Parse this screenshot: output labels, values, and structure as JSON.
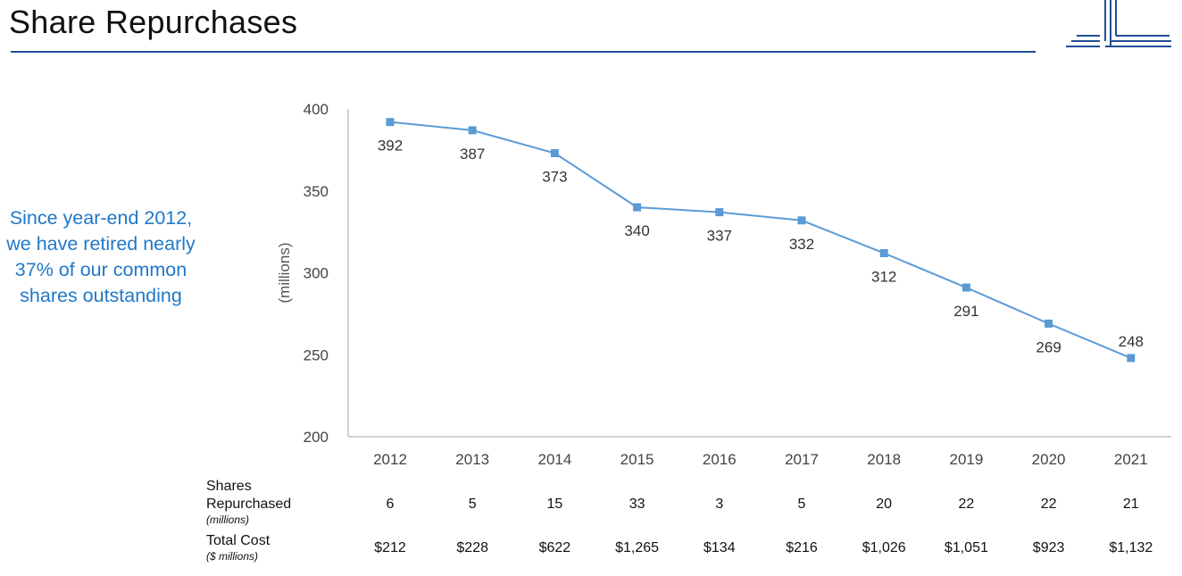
{
  "title": "Share Repurchases",
  "callout": "Since year-end 2012, we have retired nearly 37% of our common shares outstanding",
  "colors": {
    "accent": "#1f4e96",
    "series": "#5b9bd5",
    "callout": "#1f78c8"
  },
  "chart_data": {
    "type": "line",
    "title": "",
    "xlabel": "",
    "ylabel": "(millions)",
    "categories": [
      "2012",
      "2013",
      "2014",
      "2015",
      "2016",
      "2017",
      "2018",
      "2019",
      "2020",
      "2021"
    ],
    "values": [
      392,
      387,
      373,
      340,
      337,
      332,
      312,
      291,
      269,
      248
    ],
    "ylim": [
      200,
      400
    ],
    "yticks": [
      200,
      250,
      300,
      350,
      400
    ],
    "marker": "square",
    "grid": false
  },
  "table": {
    "rows": [
      {
        "label": "Shares Repurchased",
        "sublabel": "(millions)",
        "values": [
          "6",
          "5",
          "15",
          "33",
          "3",
          "5",
          "20",
          "22",
          "22",
          "21"
        ]
      },
      {
        "label": "Total Cost",
        "sublabel": "($ millions)",
        "values": [
          "$212",
          "$228",
          "$622",
          "$1,265",
          "$134",
          "$216",
          "$1,026",
          "$1,051",
          "$923",
          "$1,132"
        ]
      }
    ]
  }
}
